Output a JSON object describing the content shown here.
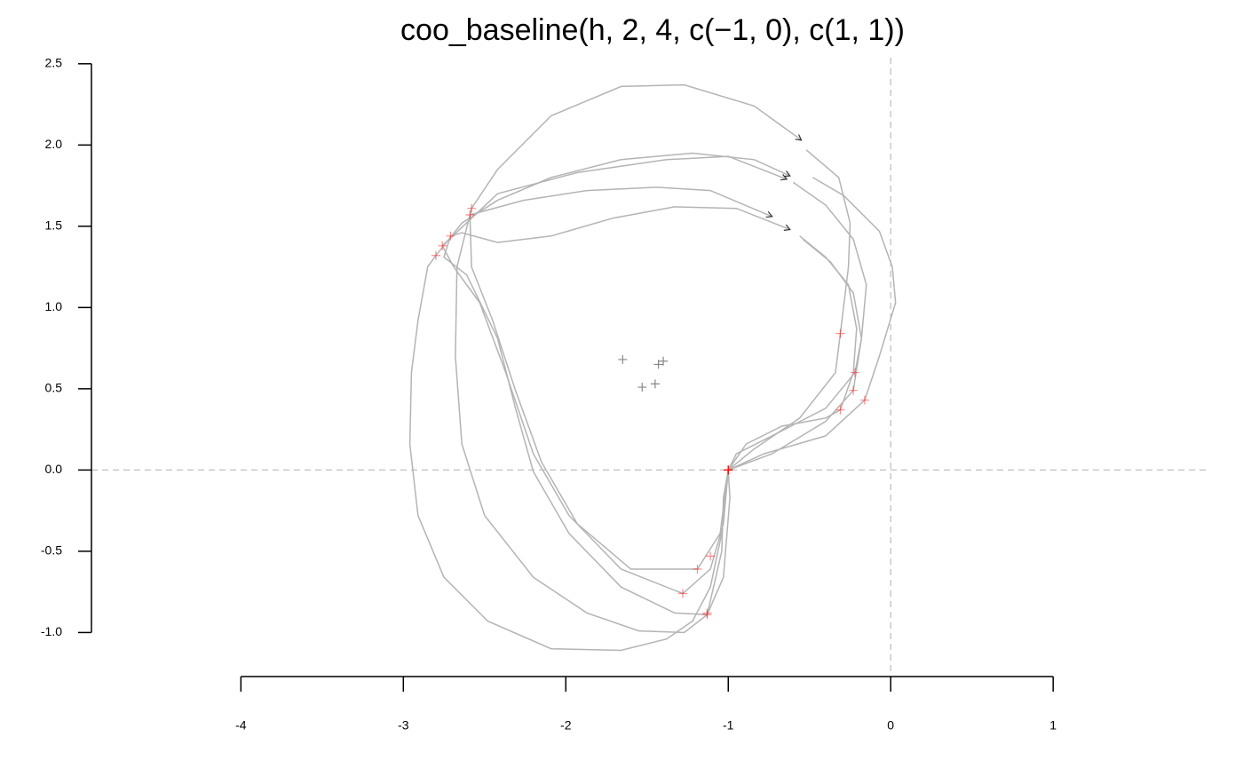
{
  "chart_data": {
    "type": "outline",
    "title": "coo_baseline(h, 2, 4, c(−1, 0), c(1, 1))",
    "xlim": [
      -4.92,
      1.95
    ],
    "ylim": [
      -1.26,
      2.57
    ],
    "xticks": [
      -4,
      -3,
      -2,
      -1,
      0,
      1
    ],
    "yticks": [
      2.5,
      {
        "value": 2,
        "label": "2.0"
      },
      1.5,
      {
        "value": 1,
        "label": "1.0"
      },
      0.5,
      {
        "value": 0,
        "label": "0.0"
      },
      -0.5,
      {
        "value": -1,
        "label": "-1.0"
      }
    ],
    "hlines": [
      0
    ],
    "vlines": [
      0
    ],
    "refline_color": "#c8c8c8",
    "outline_color": "#b4b4b4",
    "landmark_color": "#ff0000",
    "centroid_color": "#555555",
    "series": [
      {
        "x": [
          -0.55,
          -0.84,
          -1.27,
          -1.66,
          -2.09,
          -2.42,
          -2.58,
          -2.67,
          -2.68,
          -2.64,
          -2.5,
          -2.2,
          -1.87,
          -1.55,
          -1.27,
          -1.13,
          -1.04,
          -1.03,
          -1,
          -0.84,
          -0.56,
          -0.34,
          -0.31,
          -0.26,
          -0.25,
          -0.32,
          -0.52
        ],
        "y": [
          2.03,
          2.24,
          2.37,
          2.36,
          2.18,
          1.85,
          1.61,
          1.25,
          0.7,
          0.16,
          -0.28,
          -0.66,
          -0.88,
          -0.99,
          -1,
          -0.89,
          -0.5,
          -0.17,
          0,
          0.13,
          0.32,
          0.6,
          0.84,
          1.25,
          1.52,
          1.8,
          1.97
        ]
      },
      {
        "x": [
          -0.62,
          -0.84,
          -1.22,
          -1.66,
          -2.09,
          -2.42,
          -2.64,
          -2.8,
          -2.85,
          -2.91,
          -2.95,
          -2.96,
          -2.91,
          -2.75,
          -2.48,
          -2.09,
          -1.66,
          -1.38,
          -1.22,
          -1.11,
          -1.04,
          -1,
          -0.78,
          -0.4,
          -0.16,
          -0.07,
          0.03,
          0.01,
          -0.07,
          -0.29,
          -0.48
        ],
        "y": [
          1.81,
          1.91,
          1.95,
          1.91,
          1.8,
          1.66,
          1.52,
          1.32,
          1.25,
          0.92,
          0.6,
          0.16,
          -0.28,
          -0.66,
          -0.93,
          -1.1,
          -1.11,
          -1.04,
          -0.93,
          -0.72,
          -0.39,
          0,
          0.1,
          0.21,
          0.43,
          0.7,
          1.03,
          1.25,
          1.47,
          1.69,
          1.8
        ]
      },
      {
        "x": [
          -0.64,
          -1,
          -1.38,
          -1.93,
          -2.42,
          -2.76,
          -2.69,
          -2.53,
          -2.37,
          -2.2,
          -1.98,
          -1.66,
          -1.28,
          -1.11,
          -1.03,
          -1,
          -0.73,
          -0.4,
          -0.23,
          -0.18,
          -0.15,
          -0.23,
          -0.4,
          -0.6
        ],
        "y": [
          1.79,
          1.93,
          1.91,
          1.83,
          1.7,
          1.38,
          1.25,
          1.03,
          0.6,
          0.1,
          -0.28,
          -0.61,
          -0.76,
          -0.61,
          -0.33,
          0,
          0.1,
          0.3,
          0.49,
          0.81,
          1.14,
          1.42,
          1.63,
          1.77
        ]
      },
      {
        "x": [
          -0.73,
          -1.11,
          -1.44,
          -1.87,
          -2.26,
          -2.59,
          -2.58,
          -2.45,
          -2.31,
          -2.15,
          -1.93,
          -1.6,
          -1.19,
          -1.05,
          -1,
          -0.89,
          -0.67,
          -0.4,
          -0.31,
          -0.23,
          -0.21,
          -0.26,
          -0.4,
          -0.56
        ],
        "y": [
          1.56,
          1.72,
          1.74,
          1.72,
          1.66,
          1.57,
          1.25,
          0.92,
          0.49,
          0.05,
          -0.33,
          -0.61,
          -0.61,
          -0.39,
          0,
          0.16,
          0.27,
          0.32,
          0.37,
          0.6,
          0.87,
          1.14,
          1.31,
          1.44
        ]
      },
      {
        "x": [
          -0.62,
          -0.95,
          -1.33,
          -1.71,
          -2.09,
          -2.42,
          -2.64,
          -2.71,
          -2.75,
          -2.61,
          -2.42,
          -2.31,
          -2.2,
          -1.98,
          -1.66,
          -1.33,
          -1.13,
          -1.03,
          -0.99,
          -1,
          -0.95,
          -0.73,
          -0.4,
          -0.22,
          -0.18,
          -0.23,
          -0.37,
          -0.54
        ],
        "y": [
          1.48,
          1.61,
          1.62,
          1.55,
          1.44,
          1.4,
          1.46,
          1.44,
          1.31,
          1.2,
          0.81,
          0.38,
          -0.01,
          -0.39,
          -0.72,
          -0.88,
          -0.89,
          -0.66,
          -0.17,
          0,
          0.1,
          0.21,
          0.38,
          0.6,
          0.81,
          1.09,
          1.28,
          1.42
        ]
      }
    ],
    "landmarks": {
      "x": [
        -1,
        -1,
        -1,
        -1,
        -1,
        -2.58,
        -2.8,
        -2.76,
        -2.59,
        -2.71,
        -1.13,
        -1.11,
        -1.28,
        -1.19,
        -1.13,
        -0.31,
        -0.16,
        -0.23,
        -0.31,
        -0.22
      ],
      "y": [
        0,
        0,
        0,
        0,
        0,
        1.61,
        1.32,
        1.38,
        1.57,
        1.44,
        -0.89,
        -0.53,
        -0.76,
        -0.61,
        -0.88,
        0.84,
        0.43,
        0.49,
        0.37,
        0.6
      ]
    },
    "centroids": {
      "x": [
        -1.65,
        -1.43,
        -1.4,
        -1.53,
        -1.45
      ],
      "y": [
        0.68,
        0.65,
        0.67,
        0.51,
        0.53
      ]
    }
  }
}
